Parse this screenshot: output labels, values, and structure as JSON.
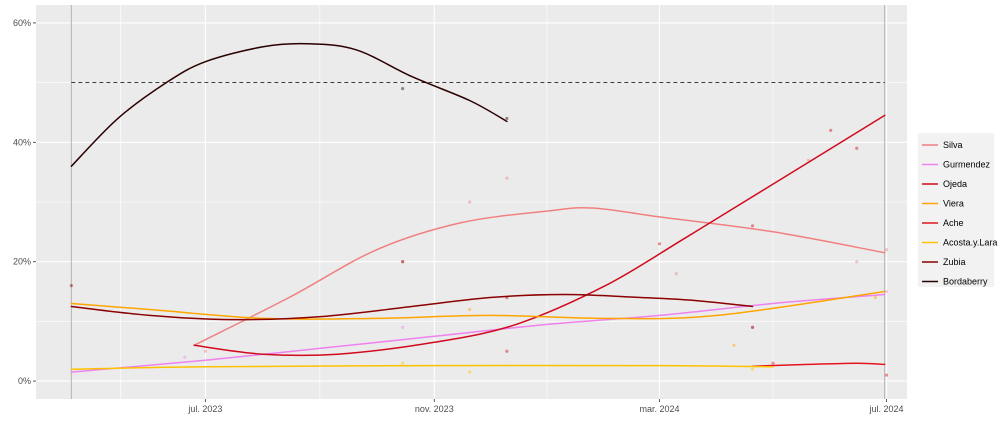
{
  "chart_data": {
    "type": "line",
    "title": "",
    "xlabel": "",
    "ylabel": "",
    "x_range": [
      "2023-04-01",
      "2024-07-12"
    ],
    "ylim": [
      -3,
      63
    ],
    "x_ticks": [
      {
        "date": "2023-07-01",
        "label": "jul. 2023"
      },
      {
        "date": "2023-11-01",
        "label": "nov. 2023"
      },
      {
        "date": "2024-03-01",
        "label": "mar. 2024"
      },
      {
        "date": "2024-07-01",
        "label": "jul. 2024"
      }
    ],
    "y_ticks": [
      {
        "value": 0,
        "label": "0%"
      },
      {
        "value": 20,
        "label": "20%"
      },
      {
        "value": 40,
        "label": "40%"
      },
      {
        "value": 60,
        "label": "60%"
      }
    ],
    "reference_line": {
      "value": 50,
      "style": "dashed"
    },
    "event_lines": [
      "2023-04-20",
      "2024-06-30"
    ],
    "grid": true,
    "legend_position": "right",
    "series": [
      {
        "name": "Silva",
        "color": "#f08080",
        "points": [
          [
            "2023-06-25",
            6
          ],
          [
            "2023-08-15",
            14
          ],
          [
            "2023-10-01",
            22
          ],
          [
            "2023-11-15",
            26.5
          ],
          [
            "2024-01-01",
            28.5
          ],
          [
            "2024-01-25",
            29
          ],
          [
            "2024-03-01",
            27.5
          ],
          [
            "2024-05-01",
            25
          ],
          [
            "2024-06-30",
            21.5
          ]
        ],
        "observations": [
          [
            "2023-07-01",
            5
          ],
          [
            "2023-10-15",
            20
          ],
          [
            "2023-11-20",
            30
          ],
          [
            "2023-12-10",
            34
          ],
          [
            "2024-03-10",
            18
          ],
          [
            "2024-05-20",
            37
          ],
          [
            "2024-06-15",
            20
          ],
          [
            "2024-07-01",
            22
          ]
        ]
      },
      {
        "name": "Gurmendez",
        "color": "#ee82ee",
        "points": [
          [
            "2023-04-20",
            1.5
          ],
          [
            "2023-07-01",
            3.5
          ],
          [
            "2023-09-01",
            5.5
          ],
          [
            "2023-11-01",
            7.5
          ],
          [
            "2024-01-01",
            9.5
          ],
          [
            "2024-03-01",
            11
          ],
          [
            "2024-05-01",
            13
          ],
          [
            "2024-06-30",
            14.5
          ]
        ],
        "observations": [
          [
            "2023-06-20",
            4
          ],
          [
            "2023-10-15",
            9
          ],
          [
            "2024-04-20",
            9
          ],
          [
            "2024-07-01",
            15
          ]
        ]
      },
      {
        "name": "Ojeda",
        "color": "#d10a1e",
        "points": [
          [
            "2023-06-25",
            6
          ],
          [
            "2023-08-01",
            4.5
          ],
          [
            "2023-09-10",
            4.5
          ],
          [
            "2023-11-01",
            6.5
          ],
          [
            "2023-12-15",
            9.5
          ],
          [
            "2024-02-01",
            16
          ],
          [
            "2024-03-15",
            24
          ],
          [
            "2024-05-01",
            33
          ],
          [
            "2024-06-30",
            44.5
          ]
        ],
        "observations": [
          [
            "2023-12-10",
            5
          ],
          [
            "2024-03-01",
            23
          ],
          [
            "2024-04-20",
            26
          ],
          [
            "2024-06-01",
            42
          ],
          [
            "2024-06-15",
            39
          ]
        ]
      },
      {
        "name": "Viera",
        "color": "#ffa500",
        "points": [
          [
            "2023-04-20",
            13
          ],
          [
            "2023-06-01",
            12
          ],
          [
            "2023-08-01",
            10.5
          ],
          [
            "2023-10-01",
            10.5
          ],
          [
            "2023-12-01",
            11
          ],
          [
            "2024-02-01",
            10.5
          ],
          [
            "2024-04-01",
            11
          ],
          [
            "2024-06-30",
            15
          ]
        ],
        "observations": [
          [
            "2023-11-20",
            12
          ],
          [
            "2024-04-10",
            6
          ],
          [
            "2024-06-25",
            14
          ]
        ]
      },
      {
        "name": "Ache",
        "color": "#e3141e",
        "points": [
          [
            "2024-04-20",
            2.5
          ],
          [
            "2024-05-20",
            2.8
          ],
          [
            "2024-06-15",
            3
          ],
          [
            "2024-06-30",
            2.8
          ]
        ],
        "observations": [
          [
            "2024-05-01",
            3
          ],
          [
            "2024-07-01",
            1
          ]
        ]
      },
      {
        "name": "Acosta.y.Lara",
        "color": "#ffc200",
        "points": [
          [
            "2023-04-20",
            2
          ],
          [
            "2023-07-01",
            2.4
          ],
          [
            "2023-11-01",
            2.6
          ],
          [
            "2024-03-01",
            2.6
          ],
          [
            "2024-05-01",
            2.4
          ]
        ],
        "observations": [
          [
            "2023-10-15",
            3
          ],
          [
            "2023-11-20",
            1.5
          ],
          [
            "2024-04-20",
            2
          ]
        ]
      },
      {
        "name": "Zubia",
        "color": "#8b0000",
        "points": [
          [
            "2023-04-20",
            12.5
          ],
          [
            "2023-06-01",
            11
          ],
          [
            "2023-07-15",
            10.3
          ],
          [
            "2023-09-01",
            10.8
          ],
          [
            "2023-10-20",
            12.5
          ],
          [
            "2023-12-01",
            14
          ],
          [
            "2024-01-10",
            14.5
          ],
          [
            "2024-02-20",
            14
          ],
          [
            "2024-03-20",
            13.5
          ],
          [
            "2024-04-20",
            12.5
          ]
        ],
        "observations": [
          [
            "2023-04-20",
            16
          ],
          [
            "2023-10-15",
            20
          ],
          [
            "2023-12-10",
            14
          ],
          [
            "2024-04-20",
            9
          ]
        ]
      },
      {
        "name": "Bordaberry",
        "color": "#2b0000",
        "points": [
          [
            "2023-04-20",
            36
          ],
          [
            "2023-05-15",
            44
          ],
          [
            "2023-06-10",
            50
          ],
          [
            "2023-07-01",
            53.5
          ],
          [
            "2023-08-01",
            56
          ],
          [
            "2023-08-25",
            56.5
          ],
          [
            "2023-09-20",
            55.5
          ],
          [
            "2023-10-20",
            51
          ],
          [
            "2023-11-20",
            47
          ],
          [
            "2023-12-10",
            43.5
          ]
        ],
        "observations": [
          [
            "2023-10-15",
            49
          ],
          [
            "2023-12-10",
            44
          ]
        ]
      }
    ]
  }
}
